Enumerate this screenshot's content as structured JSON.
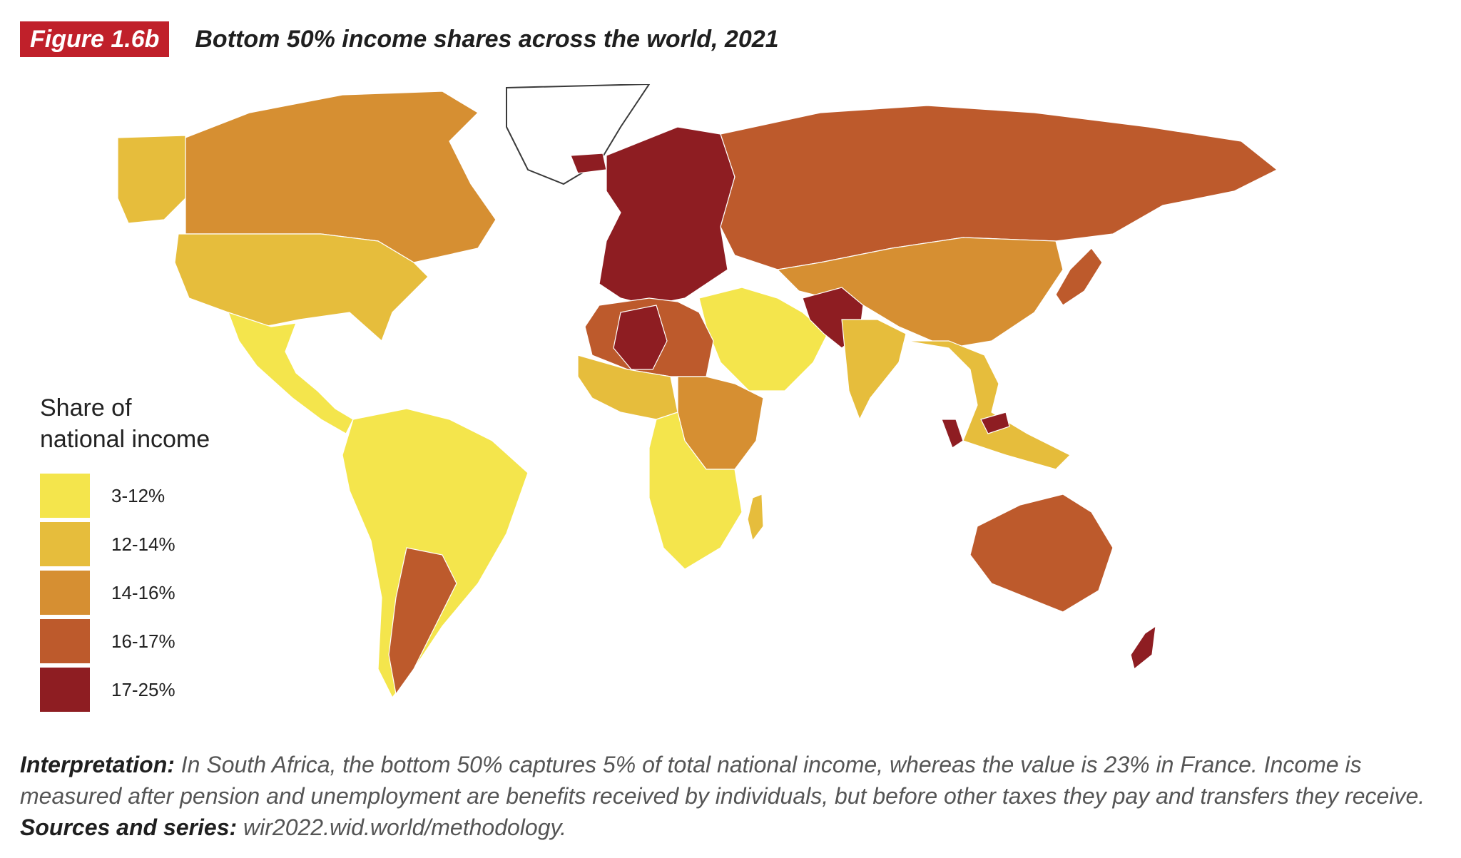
{
  "figure": {
    "tag": "Figure 1.6b",
    "title": "Bottom 50% income shares across the world, 2021"
  },
  "legend": {
    "title_line1": "Share of",
    "title_line2": "national income",
    "items": [
      {
        "label": "3-12%",
        "color": "#f4e54c"
      },
      {
        "label": "12-14%",
        "color": "#e6bd3c"
      },
      {
        "label": "14-16%",
        "color": "#d68f32"
      },
      {
        "label": "16-17%",
        "color": "#bd5a2c"
      },
      {
        "label": "17-25%",
        "color": "#8e1d22"
      }
    ]
  },
  "caption": {
    "interp_label": "Interpretation:",
    "interp_text": " In South Africa, the bottom 50% captures 5% of total national income, whereas the value is 23% in France. Income is measured after pension and unemployment are benefits received by individuals, but before other taxes they pay and transfers they receive. ",
    "sources_label": "Sources and series:",
    "sources_text": " wir2022.wid.world/methodology."
  },
  "map": {
    "regions": [
      {
        "name": "canada",
        "band": 2
      },
      {
        "name": "alaska",
        "band": 1
      },
      {
        "name": "usa",
        "band": 1
      },
      {
        "name": "mexico-central-america",
        "band": 0
      },
      {
        "name": "south-america",
        "band": 0
      },
      {
        "name": "argentina",
        "band": 3
      },
      {
        "name": "europe",
        "band": 4
      },
      {
        "name": "russia",
        "band": 3
      },
      {
        "name": "north-africa",
        "band": 3
      },
      {
        "name": "algeria",
        "band": 4
      },
      {
        "name": "west-africa",
        "band": 1
      },
      {
        "name": "east-africa",
        "band": 2
      },
      {
        "name": "southern-africa",
        "band": 0
      },
      {
        "name": "middle-east",
        "band": 0
      },
      {
        "name": "pakistan-afghanistan",
        "band": 4
      },
      {
        "name": "india",
        "band": 1
      },
      {
        "name": "china-central-asia",
        "band": 2
      },
      {
        "name": "japan",
        "band": 3
      },
      {
        "name": "southeast-asia",
        "band": 1
      },
      {
        "name": "malaysia",
        "band": 4
      },
      {
        "name": "australia",
        "band": 3
      },
      {
        "name": "new-zealand",
        "band": 4
      },
      {
        "name": "madagascar",
        "band": 1
      },
      {
        "name": "greenland",
        "band": -1
      },
      {
        "name": "iceland",
        "band": 4
      }
    ]
  }
}
